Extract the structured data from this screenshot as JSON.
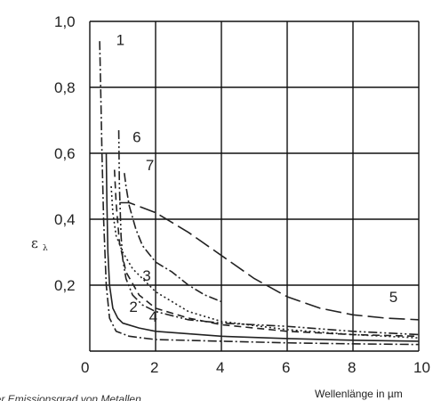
{
  "chart_data": {
    "type": "line",
    "xlabel": "Wellenlänge in µm",
    "ylabel": {
      "main": "ε",
      "subscript": "λ"
    },
    "xlim": [
      0,
      10
    ],
    "ylim": [
      0,
      1.0
    ],
    "x_ticks": [
      "0",
      "2",
      "4",
      "6",
      "8",
      "10"
    ],
    "y_ticks": [
      "0,2",
      "0,4",
      "0,6",
      "0,8",
      "1,0"
    ],
    "grid": true,
    "caption": "der Emissionsgrad von Metallen",
    "series": [
      {
        "name": "1",
        "style": "dash-dot",
        "label_pos": [
          0.8,
          0.945
        ],
        "x": [
          0.3,
          0.33,
          0.37,
          0.42,
          0.5,
          0.6,
          0.8,
          1.2,
          2,
          4,
          6,
          8,
          10
        ],
        "y": [
          0.94,
          0.8,
          0.6,
          0.4,
          0.2,
          0.1,
          0.06,
          0.045,
          0.035,
          0.03,
          0.025,
          0.022,
          0.02
        ]
      },
      {
        "name": "2",
        "style": "solid",
        "label_pos": [
          1.2,
          0.135
        ],
        "x": [
          0.5,
          0.52,
          0.55,
          0.6,
          0.7,
          0.85,
          1.0,
          1.5,
          2,
          4,
          6,
          8,
          10
        ],
        "y": [
          0.6,
          0.45,
          0.3,
          0.2,
          0.13,
          0.1,
          0.085,
          0.07,
          0.06,
          0.045,
          0.038,
          0.033,
          0.03
        ]
      },
      {
        "name": "3",
        "style": "dotted",
        "label_pos": [
          1.6,
          0.23
        ],
        "x": [
          0.65,
          0.7,
          0.8,
          1.0,
          1.3,
          1.7,
          2,
          3,
          4,
          6,
          8,
          10
        ],
        "y": [
          0.5,
          0.42,
          0.35,
          0.3,
          0.25,
          0.21,
          0.18,
          0.12,
          0.09,
          0.065,
          0.05,
          0.04
        ]
      },
      {
        "name": "4",
        "style": "dash",
        "label_pos": [
          1.8,
          0.105
        ],
        "x": [
          0.75,
          0.8,
          0.9,
          1.1,
          1.5,
          2,
          3,
          4,
          6,
          8,
          10
        ],
        "y": [
          0.55,
          0.45,
          0.33,
          0.24,
          0.17,
          0.13,
          0.1,
          0.08,
          0.06,
          0.05,
          0.045
        ]
      },
      {
        "name": "5",
        "style": "long-dash",
        "label_pos": [
          9.1,
          0.165
        ],
        "x": [
          0.9,
          1.2,
          2,
          3,
          4,
          5,
          6,
          7,
          8,
          9,
          10
        ],
        "y": [
          0.45,
          0.45,
          0.42,
          0.36,
          0.29,
          0.22,
          0.165,
          0.13,
          0.11,
          0.1,
          0.095
        ]
      },
      {
        "name": "6",
        "style": "dash-dot-dot",
        "label_pos": [
          1.3,
          0.65
        ],
        "x": [
          0.88,
          0.9,
          0.95,
          1.0,
          1.1,
          1.3,
          1.6,
          2,
          3,
          4,
          6,
          8,
          10
        ],
        "y": [
          0.67,
          0.5,
          0.35,
          0.28,
          0.22,
          0.17,
          0.14,
          0.12,
          0.095,
          0.085,
          0.075,
          0.06,
          0.05
        ]
      },
      {
        "name": "7",
        "style": "dash-dot",
        "label_pos": [
          1.7,
          0.565
        ],
        "x": [
          1.05,
          1.1,
          1.2,
          1.4,
          1.6,
          2,
          2.5,
          3,
          3.5,
          4
        ],
        "y": [
          0.54,
          0.5,
          0.44,
          0.37,
          0.32,
          0.27,
          0.24,
          0.2,
          0.17,
          0.15
        ]
      }
    ]
  }
}
